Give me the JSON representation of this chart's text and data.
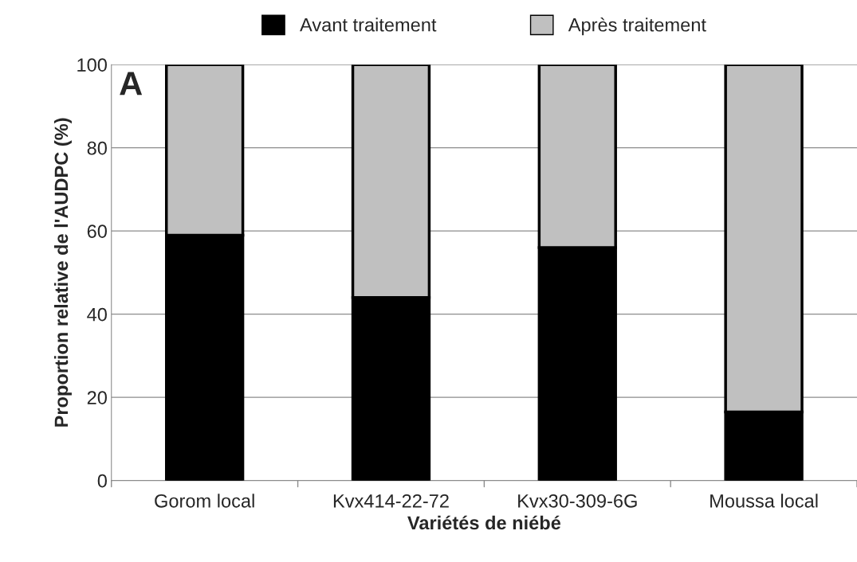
{
  "chart_data": {
    "type": "bar",
    "stacked": true,
    "xlabel": "Variétés de niébé",
    "ylabel": "Proportion relative de l'AUDPC (%)",
    "categories": [
      "Gorom local",
      "Kvx414-22-72",
      "Kvx30-309-6G",
      "Moussa local"
    ],
    "series": [
      {
        "name": "Avant traitement",
        "color": "#000000",
        "values": [
          59,
          44,
          56,
          16.5
        ]
      },
      {
        "name": "Après traitement",
        "color": "#c0c0c0",
        "values": [
          41,
          56,
          44,
          83.5
        ]
      }
    ],
    "ylim": [
      0,
      100
    ],
    "yticks": [
      0,
      20,
      40,
      60,
      80,
      100
    ],
    "grid": "y",
    "legend": "top",
    "annotations": [
      "A"
    ]
  }
}
